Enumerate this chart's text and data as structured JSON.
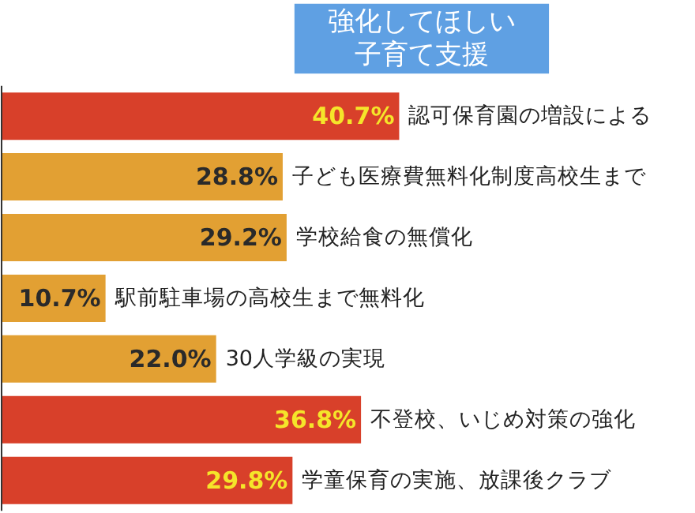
{
  "chart_data": {
    "type": "bar",
    "orientation": "horizontal",
    "title": "強化してほしい",
    "subtitle": "子育て支援",
    "categories": [
      "認可保育園の増設による",
      "子ども医療費無料化制度高校生まで",
      "学校給食の無償化",
      "駅前駐車場の高校生まで無料化",
      "30人学級の実現",
      "不登校、いじめ対策の強化",
      "学童保育の実施、放課後クラブ"
    ],
    "values": [
      40.7,
      28.8,
      29.2,
      10.7,
      22.0,
      36.8,
      29.8
    ],
    "value_labels": [
      "40.7%",
      "28.8%",
      "29.2%",
      "10.7%",
      "22.0%",
      "36.8%",
      "29.8%"
    ],
    "colors": [
      "#d8402a",
      "#e2a033",
      "#e2a033",
      "#e2a033",
      "#e2a033",
      "#d8402a",
      "#d8402a"
    ],
    "xlim": [
      0,
      71
    ],
    "tick_labels": false,
    "grid": false
  }
}
